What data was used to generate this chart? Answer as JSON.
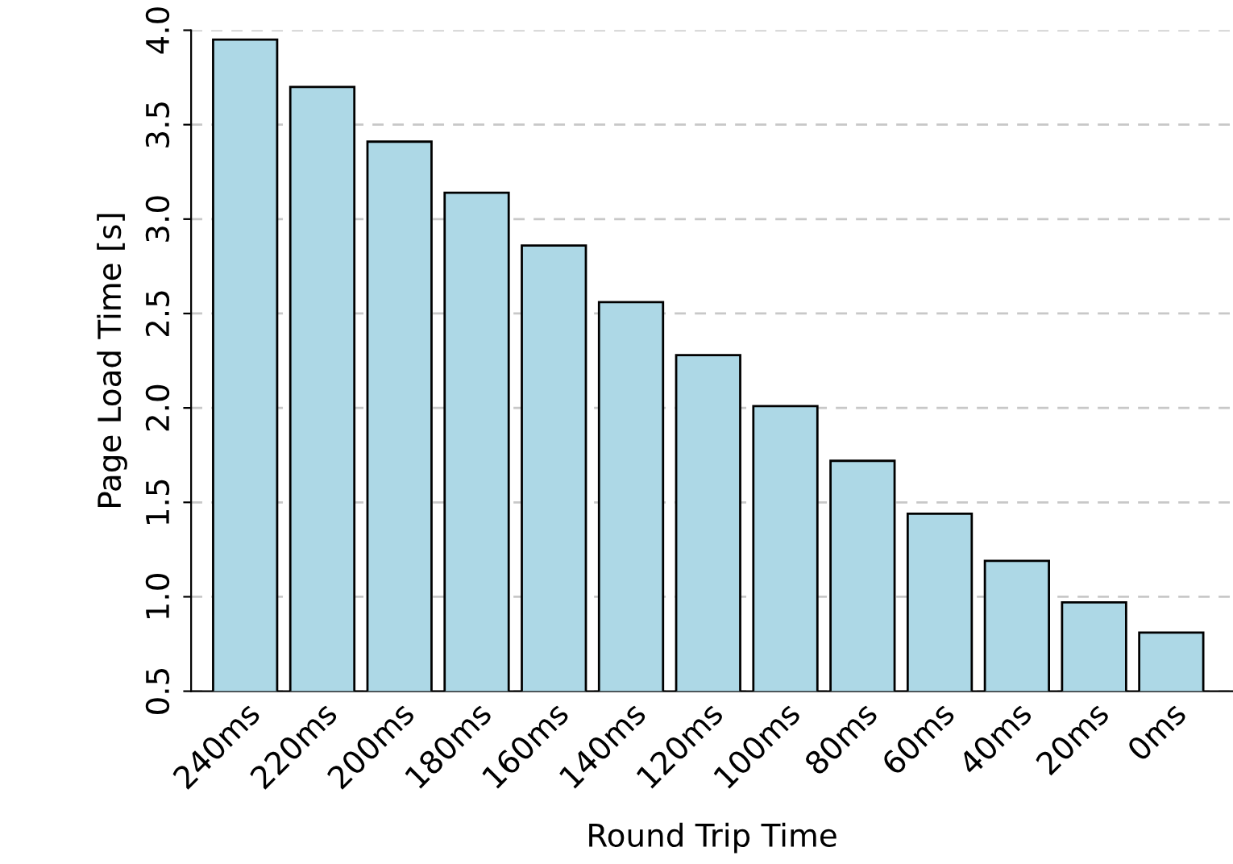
{
  "chart_data": {
    "type": "bar",
    "xlabel": "Round Trip Time",
    "ylabel": "Page Load Time [s]",
    "categories": [
      "240ms",
      "220ms",
      "200ms",
      "180ms",
      "160ms",
      "140ms",
      "120ms",
      "100ms",
      "80ms",
      "60ms",
      "40ms",
      "20ms",
      "0ms"
    ],
    "values": [
      3.95,
      3.7,
      3.41,
      3.14,
      2.86,
      2.56,
      2.28,
      2.01,
      1.72,
      1.44,
      1.19,
      0.97,
      0.81
    ],
    "color": "#add8e6",
    "ylim": [
      0.5,
      4.0
    ],
    "yticks": [
      {
        "value": 0.5,
        "label": "0.5"
      },
      {
        "value": 1.0,
        "label": "1.0"
      },
      {
        "value": 1.5,
        "label": "1.5"
      },
      {
        "value": 2.0,
        "label": "2.0"
      },
      {
        "value": 2.5,
        "label": "2.5"
      },
      {
        "value": 3.0,
        "label": "3.0"
      },
      {
        "value": 3.5,
        "label": "3.5"
      },
      {
        "value": 4.0,
        "label": "4.0"
      }
    ],
    "grid": "y"
  }
}
